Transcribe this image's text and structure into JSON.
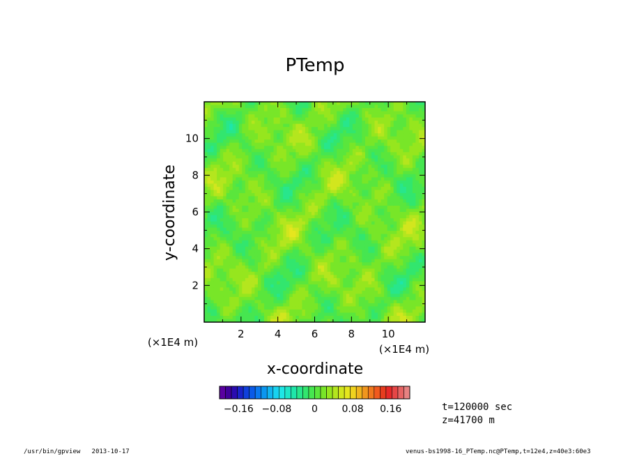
{
  "chart_data": {
    "type": "heatmap",
    "title": "PTemp",
    "xlabel": "x-coordinate",
    "ylabel": "y-coordinate",
    "x_unit": "(×1E4 m)",
    "y_unit": "(×1E4 m)",
    "xlim": [
      0,
      12
    ],
    "ylim": [
      0,
      12
    ],
    "x_ticks": [
      2,
      4,
      6,
      8,
      10
    ],
    "y_ticks": [
      2,
      4,
      6,
      8,
      10
    ],
    "x_tick_labels": [
      "2",
      "4",
      "6",
      "8",
      "10"
    ],
    "y_tick_labels": [
      "2",
      "4",
      "6",
      "8",
      "10"
    ],
    "colorbar": {
      "range": [
        -0.2,
        0.2
      ],
      "tick_values": [
        -0.16,
        -0.08,
        0,
        0.08,
        0.16
      ],
      "tick_labels": [
        "−0.16",
        "−0.08",
        "0",
        "0.08",
        "0.16"
      ],
      "colors": [
        "#5a00a0",
        "#40009a",
        "#2a0bb0",
        "#1a23c8",
        "#1040dc",
        "#0a5ae8",
        "#0a78f0",
        "#0a96f0",
        "#12b4f0",
        "#18d2f0",
        "#1ee6e6",
        "#1ee6c8",
        "#1ee6aa",
        "#28e68c",
        "#32e66e",
        "#46e650",
        "#5ae63c",
        "#78e628",
        "#96e61e",
        "#b4e61e",
        "#d2e61e",
        "#e6e61e",
        "#f0d21e",
        "#f0b41e",
        "#f0961e",
        "#f0781e",
        "#f05a1e",
        "#e63c1e",
        "#e62828",
        "#e64646",
        "#e66464",
        "#e68282"
      ]
    },
    "grid": false
  },
  "info": {
    "time": "t=120000 sec",
    "height": "z=41700 m"
  },
  "footer": {
    "left": "/usr/bin/gpview   2013-10-17",
    "right": "venus-bs1998-16_PTemp.nc@PTemp,t=12e4,z=40e3:60e3"
  }
}
